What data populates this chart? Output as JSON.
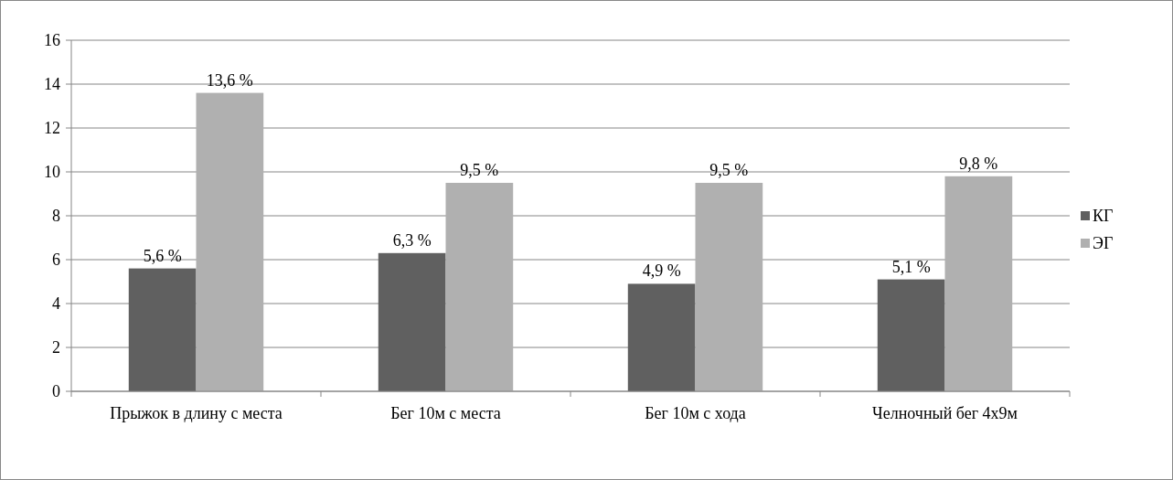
{
  "chart_data": {
    "type": "bar",
    "categories": [
      "Прыжок в длину с места",
      "Бег 10м с места",
      "Бег 10м с хода",
      "Челночный бег 4х9м"
    ],
    "series": [
      {
        "name": "КГ",
        "color": "#606060",
        "values": [
          5.6,
          6.3,
          4.9,
          5.1
        ],
        "value_labels": [
          "5,6 %",
          "6,3 %",
          "4,9 %",
          "5,1 %"
        ]
      },
      {
        "name": "ЭГ",
        "color": "#b0b0b0",
        "values": [
          13.6,
          9.5,
          9.5,
          9.8
        ],
        "value_labels": [
          "13,6 %",
          "9,5 %",
          "9,5 %",
          "9,8 %"
        ]
      }
    ],
    "ylim": [
      0,
      16
    ],
    "yticks": [
      0,
      2,
      4,
      6,
      8,
      10,
      12,
      14,
      16
    ],
    "grid": "y",
    "legend": "right"
  }
}
